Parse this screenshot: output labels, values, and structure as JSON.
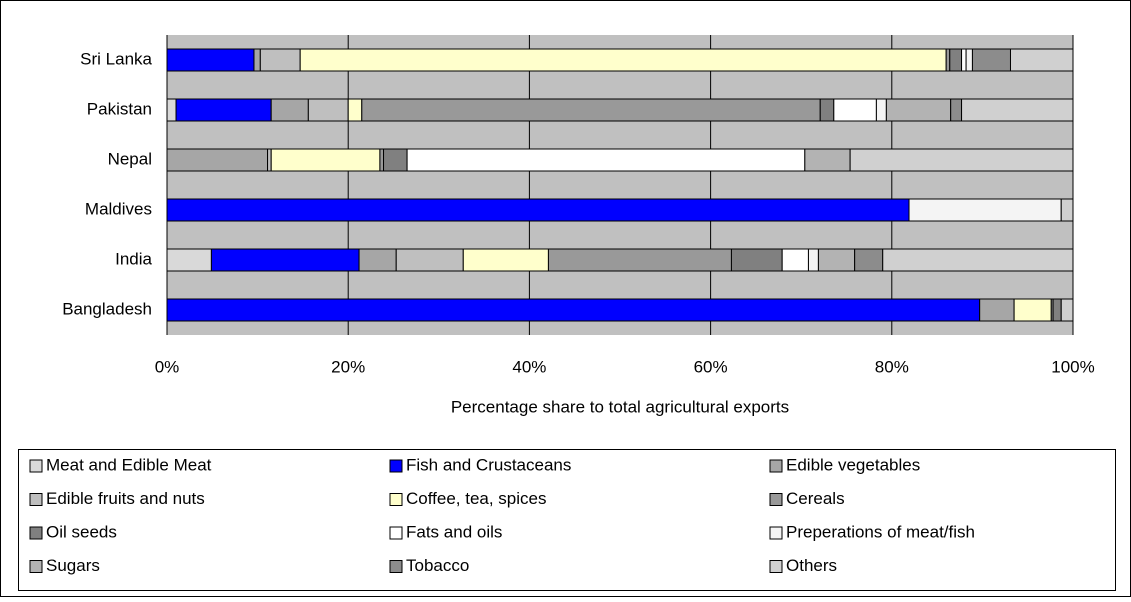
{
  "chart_data": {
    "type": "stacked-barh",
    "xlabel": "Percentage share to total agricultural exports",
    "categories": [
      "Bangladesh",
      "India",
      "Maldives",
      "Nepal",
      "Pakistan",
      "Sri Lanka"
    ],
    "series": [
      {
        "name": "Meat and Edible Meat",
        "color": "#d9d9d9",
        "values": [
          0,
          4.9,
          0,
          0,
          1.0,
          0
        ]
      },
      {
        "name": "Fish and Crustaceans",
        "color": "#0000ff",
        "values": [
          89.7,
          16.3,
          81.9,
          0,
          10.5,
          9.6
        ]
      },
      {
        "name": "Edible vegetables",
        "color": "#a6a6a6",
        "values": [
          3.8,
          4.1,
          0,
          11.1,
          4.1,
          0.7
        ]
      },
      {
        "name": "Edible fruits and nuts",
        "color": "#bfbfbf",
        "values": [
          0,
          7.4,
          0,
          0.4,
          4.4,
          4.4
        ]
      },
      {
        "name": "Coffee, tea, spices",
        "color": "#ffffcc",
        "values": [
          4.1,
          9.4,
          0,
          12.0,
          1.5,
          71.3
        ]
      },
      {
        "name": "Cereals",
        "color": "#999999",
        "values": [
          0.2,
          20.2,
          0,
          0.4,
          50.6,
          0.4
        ]
      },
      {
        "name": "Oil seeds",
        "color": "#808080",
        "values": [
          0.9,
          5.6,
          0,
          2.6,
          1.5,
          1.3
        ]
      },
      {
        "name": "Fats and oils",
        "color": "#ffffff",
        "values": [
          0,
          2.9,
          0,
          43.9,
          4.7,
          0.5
        ]
      },
      {
        "name": "Preperations of meat/fish",
        "color": "#f4f4f4",
        "values": [
          0,
          1.1,
          16.8,
          0,
          1.1,
          0.7
        ]
      },
      {
        "name": "Sugars",
        "color": "#b3b3b3",
        "values": [
          0,
          4.0,
          0,
          5.0,
          7.1,
          0
        ]
      },
      {
        "name": "Tobacco",
        "color": "#8c8c8c",
        "values": [
          0,
          3.1,
          0,
          0,
          1.2,
          4.2
        ]
      },
      {
        "name": "Others",
        "color": "#d0d0d0",
        "values": [
          1.3,
          21.0,
          1.3,
          24.6,
          12.3,
          6.9
        ]
      }
    ],
    "xlim": [
      0,
      100
    ],
    "xticks": [
      {
        "value": 0,
        "label": "0%"
      },
      {
        "value": 20,
        "label": "20%"
      },
      {
        "value": 40,
        "label": "40%"
      },
      {
        "value": 60,
        "label": "60%"
      },
      {
        "value": 80,
        "label": "80%"
      },
      {
        "value": 100,
        "label": "100%"
      }
    ],
    "grid": true,
    "legend": "bottom"
  }
}
